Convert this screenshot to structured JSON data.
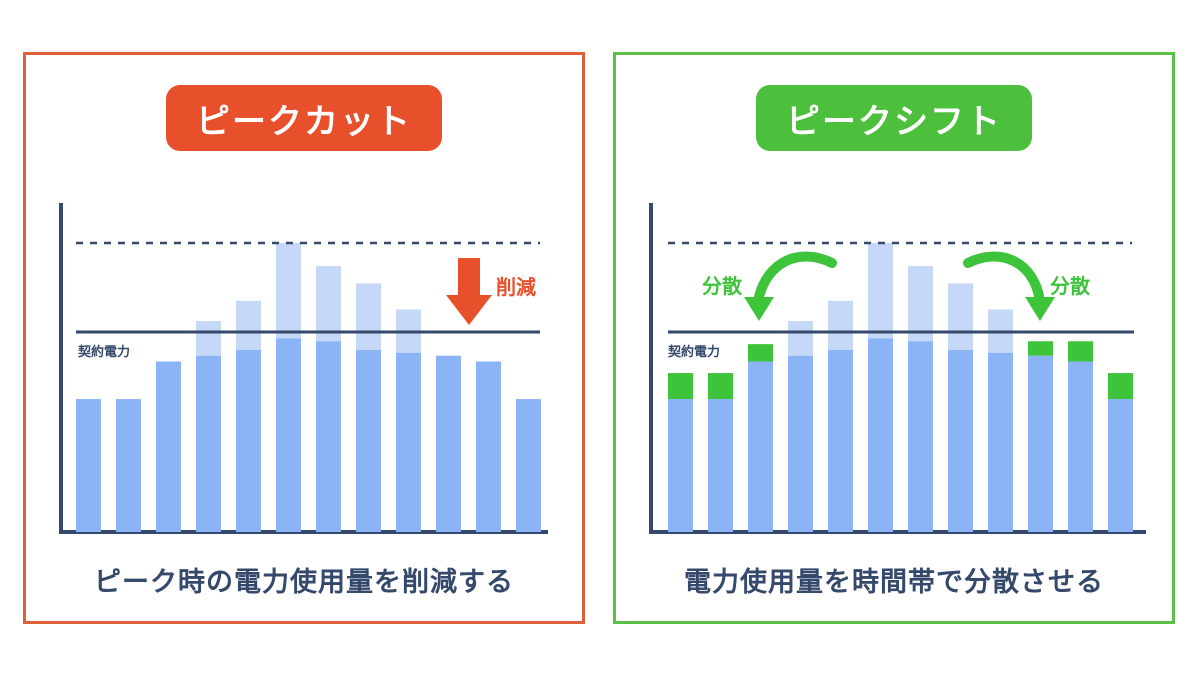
{
  "colors": {
    "axis": "#34496b",
    "bar_base": "#8ab4f5",
    "bar_ghost": "#c6d8f7",
    "shift_green": "#3ec43a",
    "cut_red": "#e8502c",
    "left_border": "#e0603a",
    "right_border": "#5bbf4a"
  },
  "left_panel": {
    "title": "ピークカット",
    "caption": "ピーク時の電力使用量を削減する",
    "contract_label": "契約電力",
    "reduction_label": "削減",
    "icons": [
      "down-arrow-icon"
    ]
  },
  "right_panel": {
    "title": "ピークシフト",
    "caption": "電力使用量を時間帯で分散させる",
    "contract_label": "契約電力",
    "spread_label_left": "分散",
    "spread_label_right": "分散",
    "icons": [
      "curved-arrow-left-icon",
      "curved-arrow-right-icon"
    ]
  },
  "chart_data": [
    {
      "type": "bar",
      "ylim": [
        0,
        100
      ],
      "contract_level": 67,
      "peak_level": 100,
      "original": [
        46,
        46,
        59,
        73,
        80,
        100,
        92,
        86,
        77,
        60,
        59,
        46
      ],
      "after": [
        46,
        46,
        59,
        61,
        63,
        67,
        66,
        63,
        62,
        61,
        59,
        46
      ],
      "shifted_add": [
        0,
        0,
        0,
        0,
        0,
        0,
        0,
        0,
        0,
        0,
        0,
        0
      ]
    },
    {
      "type": "bar",
      "ylim": [
        0,
        100
      ],
      "contract_level": 67,
      "peak_level": 100,
      "original": [
        46,
        46,
        59,
        73,
        80,
        100,
        92,
        86,
        77,
        60,
        59,
        46
      ],
      "after": [
        46,
        46,
        59,
        61,
        63,
        67,
        66,
        63,
        62,
        61,
        59,
        46
      ],
      "shifted_add": [
        9,
        9,
        6,
        0,
        0,
        0,
        0,
        0,
        0,
        5,
        7,
        9
      ]
    }
  ]
}
